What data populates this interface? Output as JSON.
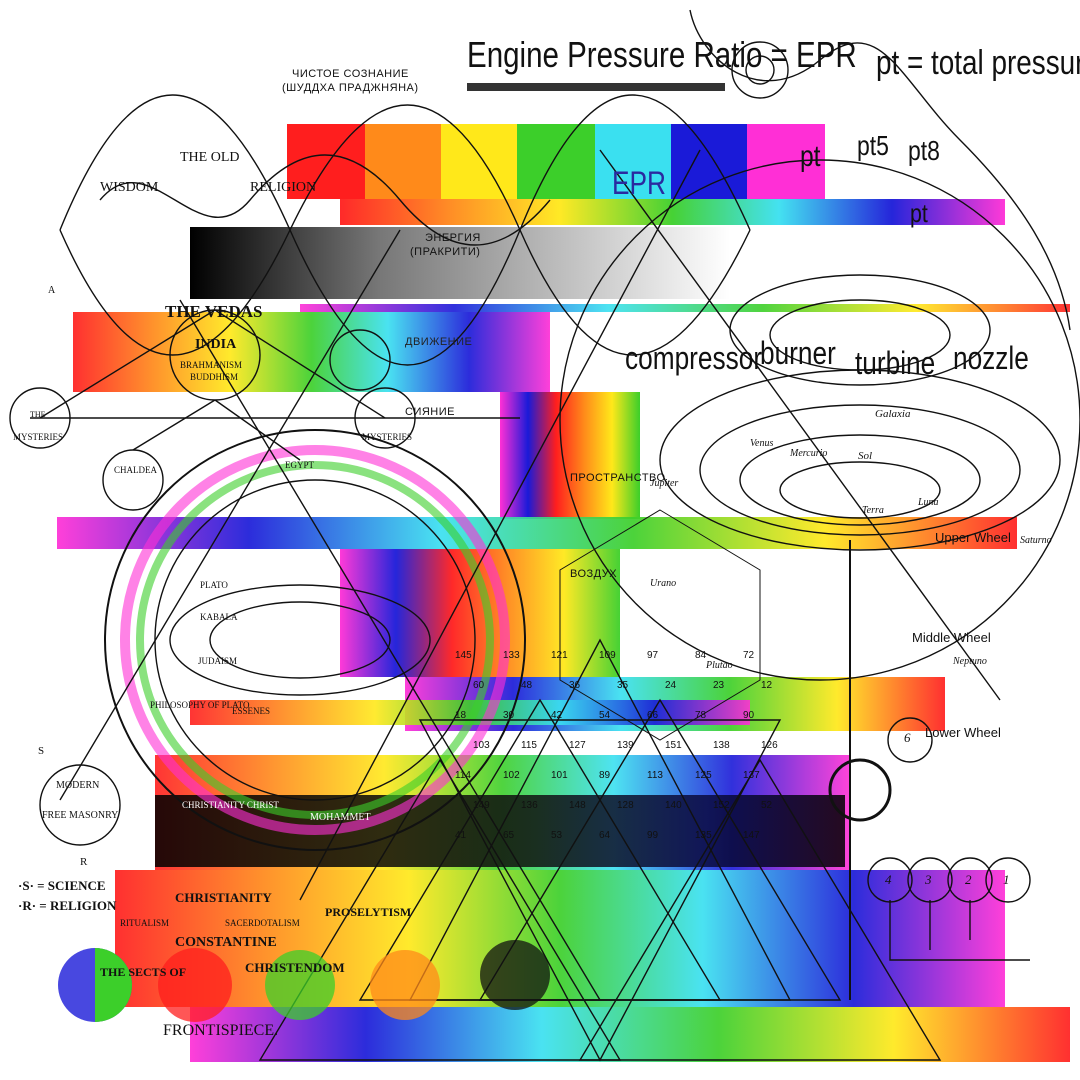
{
  "header": {
    "title": "Engine Pressure Ratio  = EPR",
    "definition": "pt  = total pressure"
  },
  "engine_stages": [
    "compressor",
    "burner",
    "turbine",
    "nozzle"
  ],
  "pressure_labels": {
    "epr": "EPR",
    "pt": "pt",
    "pt5": "pt5",
    "pt8": "pt8",
    "small_pt": "pt"
  },
  "russian_labels": {
    "pure_consciousness": "ЧИСТОЕ СОЗНАНИЕ",
    "pure_consciousness_sub": "(ШУДДХА ПРАДЖНЯНА)",
    "energy": "ЭНЕРГИЯ",
    "energy_sub": "(ПРАКРИТИ)",
    "movement": "ДВИЖЕНИЕ",
    "radiance": "СИЯНИЕ",
    "space": "ПРОСТРАНСТВО",
    "air": "ВОЗДУХ"
  },
  "esoteric_labels": {
    "old_religion_title": "THE OLD",
    "wisdom": "WISDOM",
    "religion": "RELIGION",
    "vedas": "THE VEDAS",
    "india": "INDIA",
    "brahmanism": "BRAHMANISM",
    "buddhism": "BUDDHISM",
    "mysteries_left": "MYSTERIES",
    "mysteries_right": "MYSTERIES",
    "the": "THE",
    "chaldea": "CHALDEA",
    "egypt": "EGYPT",
    "plato": "PLATO",
    "kabala": "KABALA",
    "judaism": "JUDAISM",
    "philosophy": "PHILOSOPHY OF PLATO",
    "essenes": "ESSENES",
    "christianity_christ": "CHRISTIANITY CHRIST",
    "mohammet": "MOHAMMET",
    "modern": "MODERN",
    "free_masonry": "FREE MASONRY",
    "science_key": "·S· = SCIENCE",
    "religion_key": "·R· = RELIGION",
    "christianity": "CHRISTIANITY",
    "constantine": "CONSTANTINE",
    "christendom": "CHRISTENDOM",
    "sects_of": "THE SECTS OF",
    "ritualism": "RITUALISM",
    "sacerdotalism": "SACERDOTALISM",
    "proselytism": "PROSELYTISM",
    "frontispiece": "FRONTISPIECE.",
    "letter_a": "A",
    "letter_s": "S",
    "letter_r": "R"
  },
  "orrery_labels": {
    "galaxia": "Galaxia",
    "sol": "Sol",
    "luna": "Luna",
    "terra": "Terra",
    "mercurio": "Mercurio",
    "venus": "Venus",
    "jupiter": "Jupiter",
    "urano": "Urano",
    "saturno": "Saturno",
    "plutao": "Plutao",
    "neptuno": "Neptuno",
    "upper_wheel": "Upper Wheel",
    "middle_wheel": "Middle Wheel",
    "lower_wheel": "Lower Wheel",
    "wheel_numbers": [
      "4",
      "3",
      "2",
      "1"
    ],
    "wheel_six": "6"
  },
  "grid_numbers": [
    "145",
    "133",
    "121",
    "109",
    "97",
    "84",
    "72",
    "60",
    "48",
    "36",
    "35",
    "24",
    "23",
    "12",
    "18",
    "30",
    "42",
    "54",
    "66",
    "78",
    "90",
    "103",
    "115",
    "127",
    "139",
    "151",
    "138",
    "126",
    "114",
    "102",
    "101",
    "89",
    "113",
    "125",
    "137",
    "149",
    "136",
    "148",
    "128",
    "140",
    "152",
    "52",
    "41",
    "65",
    "53",
    "64",
    "99",
    "135",
    "147"
  ],
  "colors": {
    "red": "#ff1e1e",
    "orange": "#ff8a1a",
    "yellow": "#ffe81a",
    "green": "#3ccf2a",
    "cyan": "#3ae0f0",
    "blue": "#1a1ad8",
    "magenta": "#ff2fd6",
    "ink": "#111111",
    "underline_bar": "#333333"
  }
}
